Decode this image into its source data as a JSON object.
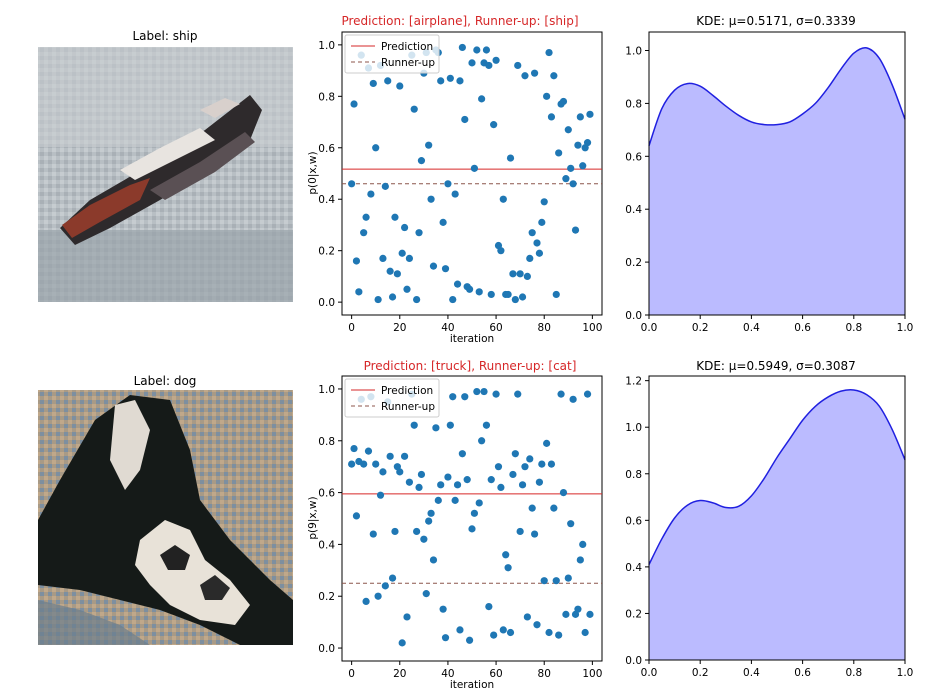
{
  "colors": {
    "scatter": "#1f77b4",
    "prediction_line": "#d62728",
    "runner_up_line": "#8c564b",
    "title_red": "#d62728",
    "kde_line": "#2020e0",
    "kde_fill": "#bbbbff"
  },
  "rows": [
    {
      "image": {
        "label": "Label: ship",
        "subject": "ship"
      },
      "scatter": {
        "title": "Prediction: [airplane], Runner-up: [ship]",
        "ylabel": "p(0|x,w)",
        "xlabel": "iteration",
        "legend": [
          "Prediction",
          "Runner-up"
        ]
      },
      "kde": {
        "title": "KDE: μ=0.5171, σ=0.3339"
      }
    },
    {
      "image": {
        "label": "Label: dog",
        "subject": "dog"
      },
      "scatter": {
        "title": "Prediction: [truck], Runner-up: [cat]",
        "ylabel": "p(9|x,w)",
        "xlabel": "iteration",
        "legend": [
          "Prediction",
          "Runner-up"
        ]
      },
      "kde": {
        "title": "KDE: μ=0.5949, σ=0.3087"
      }
    }
  ],
  "chart_data": [
    {
      "type": "scatter",
      "title": "Prediction: [airplane], Runner-up: [ship]",
      "xlabel": "iteration",
      "ylabel": "p(0|x,w)",
      "xlim": [
        -4,
        104
      ],
      "ylim": [
        -0.05,
        1.05
      ],
      "xticks": [
        0,
        20,
        40,
        60,
        80,
        100
      ],
      "yticks": [
        0.0,
        0.2,
        0.4,
        0.6,
        0.8,
        1.0
      ],
      "prediction": 0.517,
      "runner_up": 0.46,
      "legend_position": "top-left",
      "x": [
        0,
        1,
        2,
        3,
        4,
        5,
        6,
        7,
        8,
        9,
        10,
        11,
        12,
        13,
        14,
        15,
        16,
        17,
        18,
        19,
        20,
        21,
        22,
        23,
        24,
        25,
        26,
        27,
        28,
        29,
        30,
        31,
        32,
        33,
        34,
        35,
        36,
        37,
        38,
        39,
        40,
        41,
        42,
        43,
        44,
        45,
        46,
        47,
        48,
        49,
        50,
        51,
        52,
        53,
        54,
        55,
        56,
        57,
        58,
        59,
        60,
        61,
        62,
        63,
        64,
        65,
        66,
        67,
        68,
        69,
        70,
        71,
        72,
        73,
        74,
        75,
        76,
        77,
        78,
        79,
        80,
        81,
        82,
        83,
        84,
        85,
        86,
        87,
        88,
        89,
        90,
        91,
        92,
        93,
        94,
        95,
        96,
        97,
        98,
        99
      ],
      "y": [
        0.46,
        0.77,
        0.16,
        0.04,
        0.96,
        0.27,
        0.33,
        0.91,
        0.42,
        0.85,
        0.6,
        0.01,
        0.92,
        0.17,
        0.45,
        0.86,
        0.12,
        0.02,
        0.33,
        0.11,
        0.84,
        0.19,
        0.29,
        0.05,
        0.17,
        0.96,
        0.75,
        0.01,
        0.27,
        0.55,
        0.89,
        0.97,
        0.61,
        0.4,
        0.14,
        0.98,
        0.97,
        0.86,
        0.31,
        0.13,
        0.46,
        0.87,
        0.01,
        0.42,
        0.07,
        0.86,
        0.99,
        0.71,
        0.06,
        0.05,
        0.93,
        0.52,
        0.98,
        0.04,
        0.79,
        0.93,
        0.98,
        0.92,
        0.03,
        0.69,
        0.94,
        0.22,
        0.2,
        0.4,
        0.03,
        0.03,
        0.56,
        0.11,
        0.01,
        0.92,
        0.11,
        0.02,
        0.88,
        0.1,
        0.17,
        0.27,
        0.89,
        0.23,
        0.19,
        0.31,
        0.39,
        0.8,
        0.97,
        0.72,
        0.88,
        0.03,
        0.58,
        0.77,
        0.78,
        0.48,
        0.67,
        0.52,
        0.46,
        0.28,
        0.61,
        0.72,
        0.53,
        0.6,
        0.62,
        0.73
      ]
    },
    {
      "type": "area",
      "title": "KDE: μ=0.5171, σ=0.3339",
      "xlim": [
        0,
        1
      ],
      "ylim": [
        0,
        1.07
      ],
      "xticks": [
        0.0,
        0.2,
        0.4,
        0.6,
        0.8,
        1.0
      ],
      "yticks": [
        0.0,
        0.2,
        0.4,
        0.6,
        0.8,
        1.0
      ],
      "x": [
        0.0,
        0.05,
        0.1,
        0.15,
        0.2,
        0.25,
        0.3,
        0.35,
        0.4,
        0.45,
        0.5,
        0.55,
        0.6,
        0.65,
        0.7,
        0.75,
        0.8,
        0.85,
        0.9,
        0.95,
        1.0
      ],
      "y": [
        0.64,
        0.78,
        0.85,
        0.875,
        0.865,
        0.83,
        0.79,
        0.755,
        0.73,
        0.72,
        0.72,
        0.73,
        0.76,
        0.8,
        0.86,
        0.93,
        0.99,
        1.01,
        0.97,
        0.87,
        0.74
      ]
    },
    {
      "type": "scatter",
      "title": "Prediction: [truck], Runner-up: [cat]",
      "xlabel": "iteration",
      "ylabel": "p(9|x,w)",
      "xlim": [
        -4,
        104
      ],
      "ylim": [
        -0.05,
        1.05
      ],
      "xticks": [
        0,
        20,
        40,
        60,
        80,
        100
      ],
      "yticks": [
        0.0,
        0.2,
        0.4,
        0.6,
        0.8,
        1.0
      ],
      "prediction": 0.595,
      "runner_up": 0.25,
      "legend_position": "top-left",
      "x": [
        0,
        1,
        2,
        3,
        4,
        5,
        6,
        7,
        8,
        9,
        10,
        11,
        12,
        13,
        14,
        15,
        16,
        17,
        18,
        19,
        20,
        21,
        22,
        23,
        24,
        25,
        26,
        27,
        28,
        29,
        30,
        31,
        32,
        33,
        34,
        35,
        36,
        37,
        38,
        39,
        40,
        41,
        42,
        43,
        44,
        45,
        46,
        47,
        48,
        49,
        50,
        51,
        52,
        53,
        54,
        55,
        56,
        57,
        58,
        59,
        60,
        61,
        62,
        63,
        64,
        65,
        66,
        67,
        68,
        69,
        70,
        71,
        72,
        73,
        74,
        75,
        76,
        77,
        78,
        79,
        80,
        81,
        82,
        83,
        84,
        85,
        86,
        87,
        88,
        89,
        90,
        91,
        92,
        93,
        94,
        95,
        96,
        97,
        98,
        99
      ],
      "y": [
        0.71,
        0.77,
        0.51,
        0.72,
        0.96,
        0.71,
        0.18,
        0.76,
        0.97,
        0.44,
        0.71,
        0.2,
        0.59,
        0.68,
        0.24,
        0.95,
        0.74,
        0.27,
        0.45,
        0.7,
        0.68,
        0.02,
        0.74,
        0.12,
        0.64,
        0.98,
        0.86,
        0.45,
        0.62,
        0.67,
        0.42,
        0.21,
        0.49,
        0.52,
        0.34,
        0.85,
        0.57,
        0.63,
        0.15,
        0.04,
        0.66,
        0.86,
        0.97,
        0.57,
        0.63,
        0.07,
        0.75,
        0.97,
        0.65,
        0.03,
        0.46,
        0.52,
        0.99,
        0.56,
        0.8,
        0.99,
        0.86,
        0.16,
        0.65,
        0.05,
        0.98,
        0.7,
        0.62,
        0.07,
        0.36,
        0.31,
        0.06,
        0.67,
        0.75,
        0.98,
        0.45,
        0.63,
        0.7,
        0.12,
        0.73,
        0.54,
        0.44,
        0.09,
        0.64,
        0.71,
        0.26,
        0.79,
        0.06,
        0.71,
        0.54,
        0.26,
        0.05,
        0.98,
        0.6,
        0.13,
        0.27,
        0.48,
        0.96,
        0.13,
        0.15,
        0.34,
        0.4,
        0.06,
        0.98,
        0.13
      ]
    },
    {
      "type": "area",
      "title": "KDE: μ=0.5949, σ=0.3087",
      "xlim": [
        0,
        1
      ],
      "ylim": [
        0,
        1.22
      ],
      "xticks": [
        0.0,
        0.2,
        0.4,
        0.6,
        0.8,
        1.0
      ],
      "yticks": [
        0.0,
        0.2,
        0.4,
        0.6,
        0.8,
        1.0,
        1.2
      ],
      "x": [
        0.0,
        0.05,
        0.1,
        0.15,
        0.2,
        0.25,
        0.3,
        0.35,
        0.4,
        0.45,
        0.5,
        0.55,
        0.6,
        0.65,
        0.7,
        0.75,
        0.8,
        0.85,
        0.9,
        0.95,
        1.0
      ],
      "y": [
        0.41,
        0.52,
        0.61,
        0.665,
        0.685,
        0.675,
        0.655,
        0.66,
        0.705,
        0.78,
        0.87,
        0.95,
        1.03,
        1.09,
        1.13,
        1.155,
        1.16,
        1.14,
        1.09,
        0.99,
        0.86
      ]
    }
  ]
}
